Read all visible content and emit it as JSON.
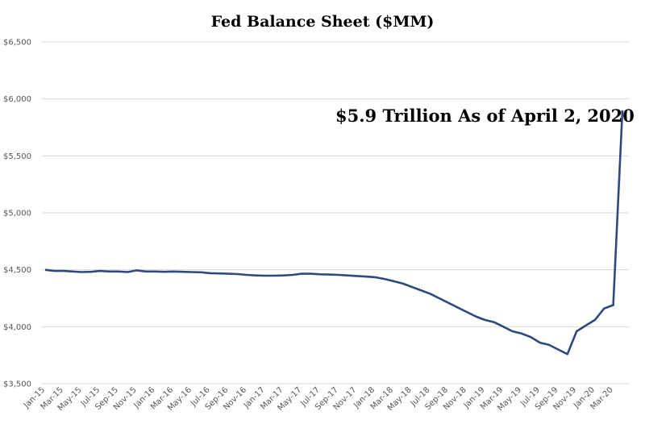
{
  "chart_data": {
    "type": "line",
    "title": "Fed Balance Sheet ($MM)",
    "annotation": "$5.9 Trillion As of April 2, 2020",
    "xlabel": "",
    "ylabel": "",
    "ylim": [
      3500,
      6500
    ],
    "yticks": [
      {
        "value": 3500,
        "label": "$3,500"
      },
      {
        "value": 4000,
        "label": "$4,000"
      },
      {
        "value": 4500,
        "label": "$4,500"
      },
      {
        "value": 5000,
        "label": "$5,000"
      },
      {
        "value": 5500,
        "label": "$5,500"
      },
      {
        "value": 6000,
        "label": "$6,000"
      },
      {
        "value": 6500,
        "label": "$6,500"
      }
    ],
    "xticks": [
      "Jan-15",
      "Mar-15",
      "May-15",
      "Jul-15",
      "Sep-15",
      "Nov-15",
      "Jan-16",
      "Mar-16",
      "May-16",
      "Jul-16",
      "Sep-16",
      "Nov-16",
      "Jan-17",
      "Mar-17",
      "May-17",
      "Jul-17",
      "Sep-17",
      "Nov-17",
      "Jan-18",
      "Mar-18",
      "May-18",
      "Jul-18",
      "Sep-18",
      "Nov-18",
      "Jan-19",
      "Mar-19",
      "May-19",
      "Jul-19",
      "Sep-19",
      "Nov-19",
      "Jan-20",
      "Mar-20"
    ],
    "grid": true,
    "line_color": "#2e4a7d",
    "grid_color": "#d9d9d9",
    "series": [
      {
        "x": [
          "Jan-15",
          "Feb-15",
          "Mar-15",
          "Apr-15",
          "May-15",
          "Jun-15",
          "Jul-15",
          "Aug-15",
          "Sep-15",
          "Oct-15",
          "Nov-15",
          "Dec-15",
          "Jan-16",
          "Feb-16",
          "Mar-16",
          "Apr-16",
          "May-16",
          "Jun-16",
          "Jul-16",
          "Aug-16",
          "Sep-16",
          "Oct-16",
          "Nov-16",
          "Dec-16",
          "Jan-17",
          "Feb-17",
          "Mar-17",
          "Apr-17",
          "May-17",
          "Jun-17",
          "Jul-17",
          "Aug-17",
          "Sep-17",
          "Oct-17",
          "Nov-17",
          "Dec-17",
          "Jan-18",
          "Feb-18",
          "Mar-18",
          "Apr-18",
          "May-18",
          "Jun-18",
          "Jul-18",
          "Aug-18",
          "Sep-18",
          "Oct-18",
          "Nov-18",
          "Dec-18",
          "Jan-19",
          "Feb-19",
          "Mar-19",
          "Apr-19",
          "May-19",
          "Jun-19",
          "Jul-19",
          "Aug-19",
          "Sep-19",
          "Oct-19",
          "Nov-19",
          "Dec-19",
          "Jan-20",
          "Feb-20",
          "Mar-20",
          "Apr-20"
        ],
        "values": [
          4500,
          4490,
          4490,
          4485,
          4480,
          4482,
          4490,
          4485,
          4485,
          4480,
          4495,
          4485,
          4485,
          4482,
          4485,
          4482,
          4480,
          4478,
          4470,
          4468,
          4465,
          4462,
          4455,
          4450,
          4448,
          4448,
          4450,
          4455,
          4465,
          4465,
          4460,
          4458,
          4455,
          4450,
          4445,
          4440,
          4435,
          4420,
          4400,
          4380,
          4350,
          4320,
          4290,
          4250,
          4210,
          4170,
          4130,
          4090,
          4060,
          4040,
          4000,
          3960,
          3940,
          3910,
          3860,
          3840,
          3800,
          3760,
          3960,
          4010,
          4060,
          4160,
          4190,
          5900
        ]
      }
    ]
  }
}
